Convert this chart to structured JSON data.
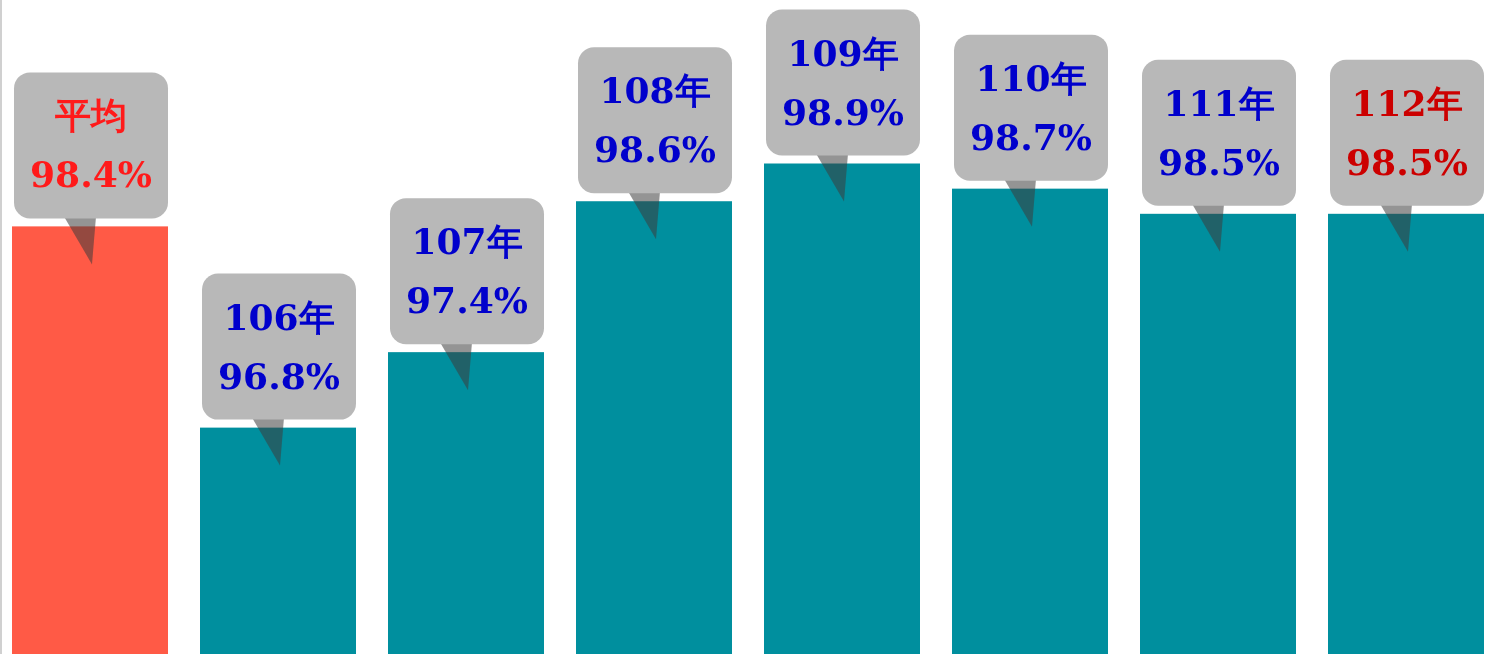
{
  "chart_data": {
    "type": "bar",
    "categories": [
      "平均",
      "106年",
      "107年",
      "108年",
      "109年",
      "110年",
      "111年",
      "112年"
    ],
    "values": [
      98.4,
      96.8,
      97.4,
      98.6,
      98.9,
      98.7,
      98.5,
      98.5
    ],
    "colors": [
      "#ff5a46",
      "#008f9e",
      "#008f9e",
      "#008f9e",
      "#008f9e",
      "#008f9e",
      "#008f9e",
      "#008f9e"
    ],
    "value_labels": [
      "98.4%",
      "96.8%",
      "97.4%",
      "98.6%",
      "98.9%",
      "98.7%",
      "98.5%",
      "98.5%"
    ],
    "ylim": [
      95,
      100.2
    ],
    "tick_labels": false
  }
}
